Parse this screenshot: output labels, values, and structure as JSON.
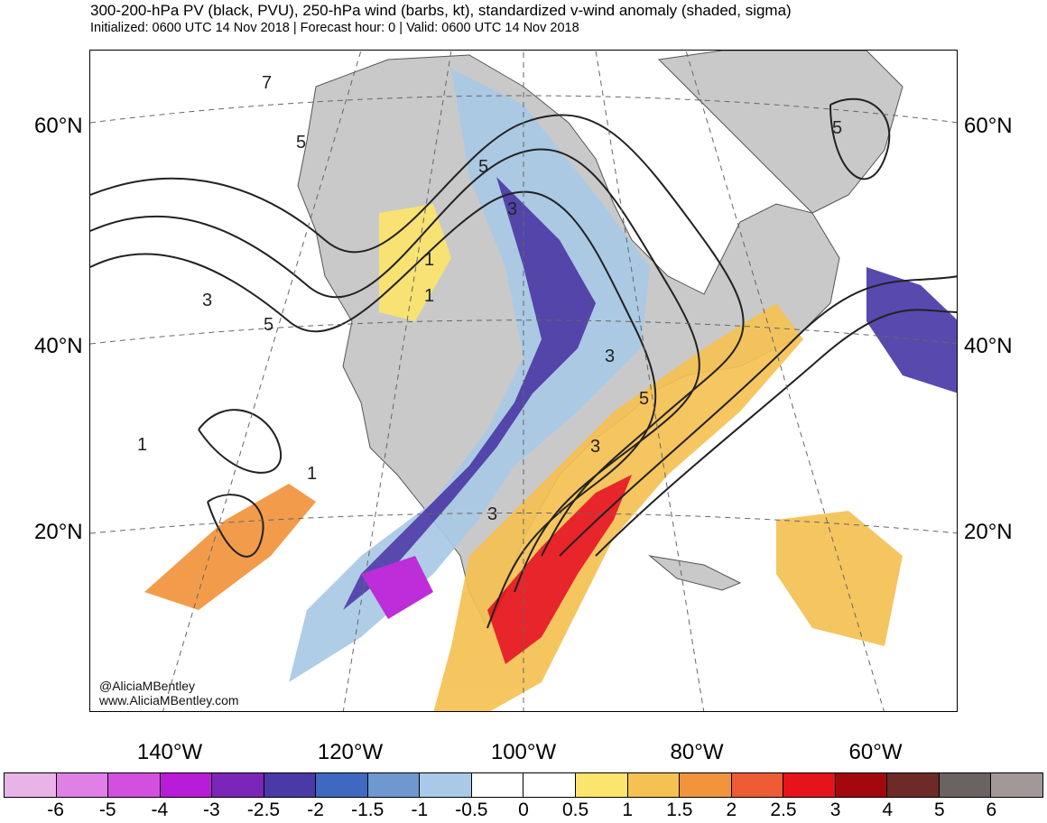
{
  "header": {
    "title": "300-200-hPa PV (black, PVU), 250-hPa wind (barbs, kt), standardized v-wind anomaly (shaded, sigma)",
    "subtitle": "Initialized: 0600 UTC 14 Nov 2018 | Forecast hour: 0 | Valid: 0600 UTC 14 Nov 2018"
  },
  "map": {
    "latitude_labels": [
      "60°N",
      "40°N",
      "20°N"
    ],
    "longitude_labels": [
      "140°W",
      "120°W",
      "100°W",
      "80°W",
      "60°W"
    ],
    "pv_contour_labels": [
      "7",
      "5",
      "5",
      "3",
      "3",
      "1",
      "5",
      "1",
      "1",
      "3",
      "3",
      "5",
      "5",
      "3",
      "1"
    ],
    "credit_handle": "@AliciaMBentley",
    "credit_url": "www.AliciaMBentley.com"
  },
  "colorbar": {
    "labels": [
      "-6",
      "-5",
      "-4",
      "-3",
      "-2.5",
      "-2",
      "-1.5",
      "-1",
      "-0.5",
      "0",
      "0.5",
      "1",
      "1.5",
      "2",
      "2.5",
      "3",
      "4",
      "5",
      "6"
    ],
    "colors": [
      "#e8b4e8",
      "#e080e6",
      "#d34fe0",
      "#b81cd6",
      "#7b26b8",
      "#4a3aa8",
      "#3f68c0",
      "#6f98d0",
      "#a9c9e6",
      "#ffffff",
      "#ffffff",
      "#fbe56c",
      "#f5c152",
      "#f1943c",
      "#ed5c34",
      "#e6131a",
      "#a3080c",
      "#6e2a26",
      "#6b6262",
      "#a39898"
    ]
  },
  "colors": {
    "land": "#c9c9c9",
    "ocean": "#ffffff",
    "contour": "#222222"
  }
}
